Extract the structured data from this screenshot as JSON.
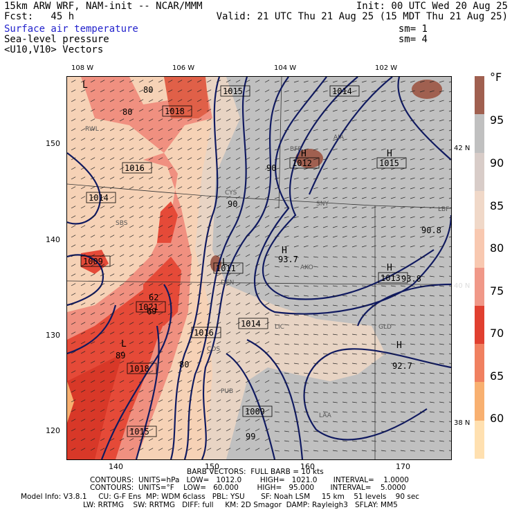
{
  "header": {
    "model_line": "15km ARW WRF, NAM-init -- NCAR/MMM",
    "fcst_line": "Fcst:   45 h",
    "init_line": "Init: 00 UTC Wed 20 Aug 25",
    "valid_line": "Valid: 21 UTC Thu 21 Aug 25 (15 MDT Thu 21 Aug 25)",
    "field1": "Surface air temperature",
    "field2": "Sea-level pressure",
    "field3": "<U10,V10> Vectors",
    "sm1": "sm= 1",
    "sm2": "sm= 4"
  },
  "axes": {
    "top_lon_labels": [
      "108 W",
      "106 W",
      "104 W",
      "102 W"
    ],
    "left_ticks": [
      "150",
      "140",
      "130",
      "120"
    ],
    "bottom_ticks": [
      "140",
      "150",
      "160",
      "170"
    ],
    "right_lat_labels": [
      "42 N",
      "40 N",
      "38 N"
    ]
  },
  "colorbar": {
    "unit": "°F",
    "labels": [
      "95",
      "90",
      "85",
      "80",
      "75",
      "70",
      "65",
      "60"
    ],
    "colors": [
      "#ffe0b0",
      "#f8b070",
      "#f08060",
      "#e04030",
      "#f09888",
      "#f8c8b0",
      "#f0d8c8",
      "#d8ccc8",
      "#c0c0c0",
      "#a06050"
    ]
  },
  "map_labels": {
    "pressure_boxes": [
      "1015",
      "1014",
      "1018",
      "1016",
      "1014",
      "1015",
      "1012",
      "1011",
      "1014",
      "1016",
      "1018",
      "1015",
      "1021",
      "1013",
      "1009",
      "1009"
    ],
    "extrema": [
      "H",
      "L",
      "H",
      "L",
      "H",
      "H",
      "L",
      "H"
    ],
    "values": [
      "80",
      "80",
      "80",
      "90",
      "90",
      "93.7",
      "90.8",
      "93.8",
      "92.7",
      "99",
      "89",
      "69",
      "62"
    ],
    "stations": [
      "RWL",
      "CYS",
      "AIA",
      "SNY",
      "LBF",
      "AKO",
      "DEN",
      "LIC",
      "GLD",
      "PUB",
      "LAA",
      "COS",
      "BFF",
      "SBS"
    ]
  },
  "footer": {
    "barb_line": "BARB VECTORS:  FULL BARB = 10 kts",
    "contours1": "CONTOURS:  UNITS=hPa   LOW=   1012.0        HIGH=   1021.0       INTERVAL=    1.0000",
    "contours2": "CONTOURS:  UNITS=°F    LOW=   60.000        HIGH=   95.000       INTERVAL=    5.0000",
    "model_info": "Model Info: V3.8.1     CU: G-F Ens  MP: WDM 6class   PBL: YSU       SF: Noah LSM     15 km    51 levels    90 sec",
    "model_info2": "LW: RRTMG    SW: RRTMG   DIFF: full     KM: 2D Smagor  DAMP: Rayleigh3   SFLAY: MM5"
  }
}
